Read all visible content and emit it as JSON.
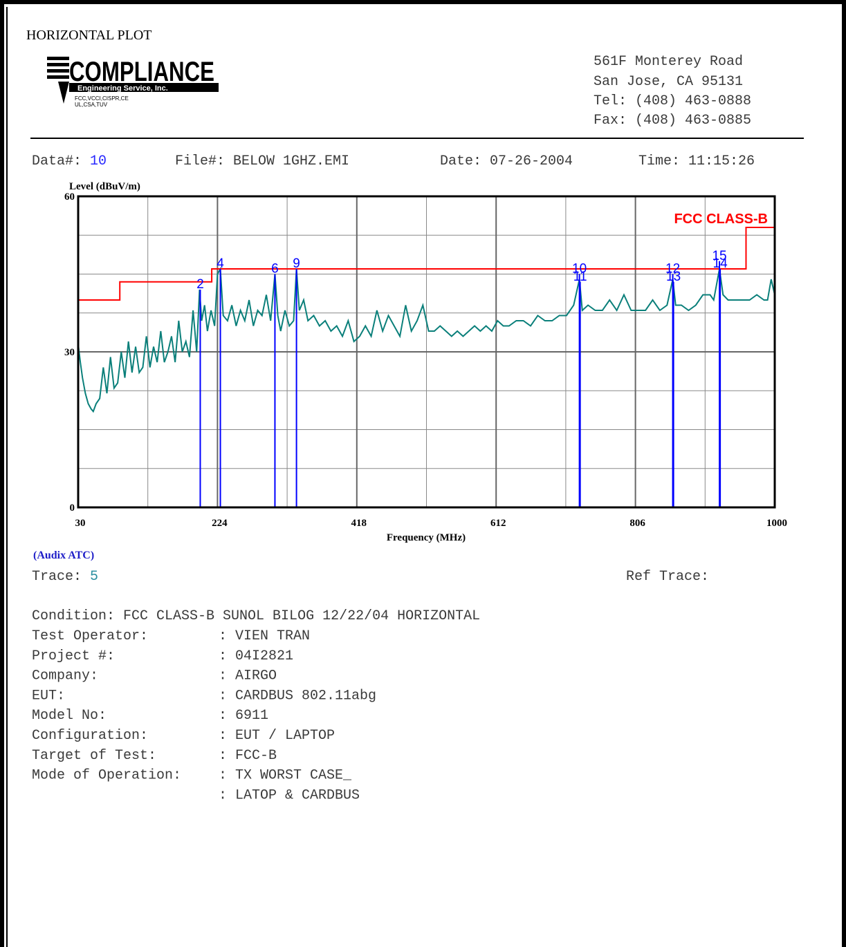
{
  "header": {
    "title": "HORIZONTAL PLOT",
    "logo": {
      "name": "COMPLIANCE",
      "subtitle": "Engineering Service, Inc.",
      "certs": [
        "FCC,VCCI,CISPR,CE",
        "UL,CSA,TUV"
      ]
    },
    "address": [
      "561F Monterey Road",
      "San Jose, CA 95131",
      "Tel: (408) 463-0888",
      "Fax: (408) 463-0885"
    ]
  },
  "info": [
    {
      "label": "Data#:",
      "value": "10"
    },
    {
      "label": "File#:",
      "value": "BELOW 1GHZ.EMI"
    },
    {
      "label": "Date:",
      "value": "07-26-2004"
    },
    {
      "label": "Time:",
      "value": "11:15:26"
    }
  ],
  "chart_data": {
    "type": "line",
    "y_label": "Level (dBuV/m)",
    "x_label": "Frequency (MHz)",
    "xlim": [
      30,
      1000
    ],
    "ylim": [
      0,
      60
    ],
    "xticks": [
      30,
      224,
      418,
      612,
      806,
      1000
    ],
    "yticks": [
      0,
      30,
      60
    ],
    "x_gridlines": [
      127,
      321,
      515,
      709,
      903
    ],
    "y_gridlines": [
      7.5,
      15,
      22.5,
      37.5,
      45,
      52.5
    ],
    "grid": true,
    "series": [
      {
        "color": "#0a7f7a",
        "x": [
          30,
          33,
          36,
          40,
          44,
          48,
          51,
          55,
          60,
          65,
          70,
          75,
          80,
          85,
          90,
          95,
          100,
          105,
          110,
          115,
          120,
          125,
          130,
          135,
          140,
          145,
          150,
          155,
          160,
          165,
          170,
          175,
          180,
          185,
          190,
          195,
          199,
          202,
          206,
          210,
          215,
          220,
          224,
          228,
          232,
          238,
          244,
          250,
          256,
          262,
          268,
          274,
          280,
          286,
          292,
          298,
          304,
          308,
          312,
          318,
          324,
          330,
          334,
          338,
          344,
          350,
          358,
          366,
          374,
          382,
          390,
          398,
          406,
          414,
          422,
          430,
          438,
          446,
          454,
          462,
          470,
          478,
          486,
          494,
          502,
          510,
          518,
          526,
          534,
          542,
          550,
          558,
          566,
          574,
          582,
          590,
          598,
          606,
          614,
          622,
          630,
          640,
          650,
          660,
          670,
          680,
          690,
          700,
          710,
          720,
          728,
          732,
          740,
          750,
          760,
          770,
          780,
          790,
          800,
          810,
          820,
          830,
          840,
          850,
          858,
          862,
          870,
          880,
          890,
          900,
          910,
          915,
          923,
          928,
          935,
          945,
          955,
          965,
          975,
          985,
          990,
          995,
          1000
        ],
        "values": [
          31.5,
          28,
          25,
          22,
          20,
          19,
          18.5,
          20,
          21,
          27,
          22,
          29,
          23,
          24,
          30,
          25,
          32,
          26,
          31,
          26,
          27,
          33,
          27,
          31,
          28,
          34,
          28,
          30,
          33,
          28,
          36,
          30,
          32,
          29,
          38,
          30,
          42,
          36,
          39,
          34,
          38,
          35,
          45,
          46,
          37,
          36,
          39,
          35,
          38,
          36,
          40,
          35,
          38,
          37,
          41,
          36,
          45,
          37,
          34,
          38,
          35,
          36,
          46,
          38,
          40,
          36,
          37,
          35,
          36,
          34,
          35,
          33,
          36,
          32,
          33,
          35,
          33,
          38,
          34,
          37,
          35,
          33,
          39,
          34,
          36,
          39,
          34,
          34,
          35,
          34,
          33,
          34,
          33,
          34,
          35,
          34,
          35,
          34,
          36,
          35,
          35,
          36,
          36,
          35,
          37,
          36,
          36,
          37,
          37,
          39,
          44,
          38,
          39,
          38,
          38,
          40,
          38,
          41,
          38,
          38,
          38,
          40,
          38,
          39,
          44,
          39,
          39,
          38,
          39,
          41,
          41,
          40,
          46,
          41,
          40,
          40,
          40,
          40,
          41,
          40,
          40,
          44,
          41
        ]
      },
      {
        "name": "FCC CLASS-B",
        "color": "#ff0000",
        "x": [
          30,
          88,
          88,
          216,
          216,
          960,
          960,
          1000
        ],
        "values": [
          40,
          40,
          43.5,
          43.5,
          46,
          46,
          54,
          54
        ]
      }
    ],
    "markers": {
      "color": "#0000ff",
      "labels": [
        "2",
        "4",
        "6",
        "9",
        "10",
        "11",
        "12",
        "13",
        "15",
        "14"
      ],
      "x": [
        200,
        228,
        304,
        334,
        728,
        729,
        858,
        859,
        923,
        924
      ],
      "values": [
        42,
        46,
        45,
        46,
        45,
        43.5,
        45,
        43.5,
        47.5,
        46
      ]
    }
  },
  "footer": {
    "antenna": "(Audix ATC)",
    "trace_label": "Trace:",
    "trace_value": "5",
    "ref_trace": "Ref Trace:",
    "condition": "Condition: FCC CLASS-B SUNOL BILOG 12/22/04 HORIZONTAL",
    "fields": [
      {
        "label": "Test Operator:",
        "values": [
          ": VIEN TRAN"
        ]
      },
      {
        "label": "Project #:",
        "values": [
          ": 04I2821"
        ]
      },
      {
        "label": "Company:",
        "values": [
          ": AIRGO"
        ]
      },
      {
        "label": "EUT:",
        "values": [
          ": CARDBUS 802.11abg"
        ]
      },
      {
        "label": "Model No:",
        "values": [
          ": 6911"
        ]
      },
      {
        "label": "Configuration:",
        "values": [
          ": EUT / LAPTOP"
        ]
      },
      {
        "label": "Target of Test:",
        "values": [
          ": FCC-B"
        ]
      },
      {
        "label": "Mode of Operation:",
        "values": [
          ": TX WORST CASE_",
          ": LATOP & CARDBUS"
        ]
      }
    ]
  }
}
